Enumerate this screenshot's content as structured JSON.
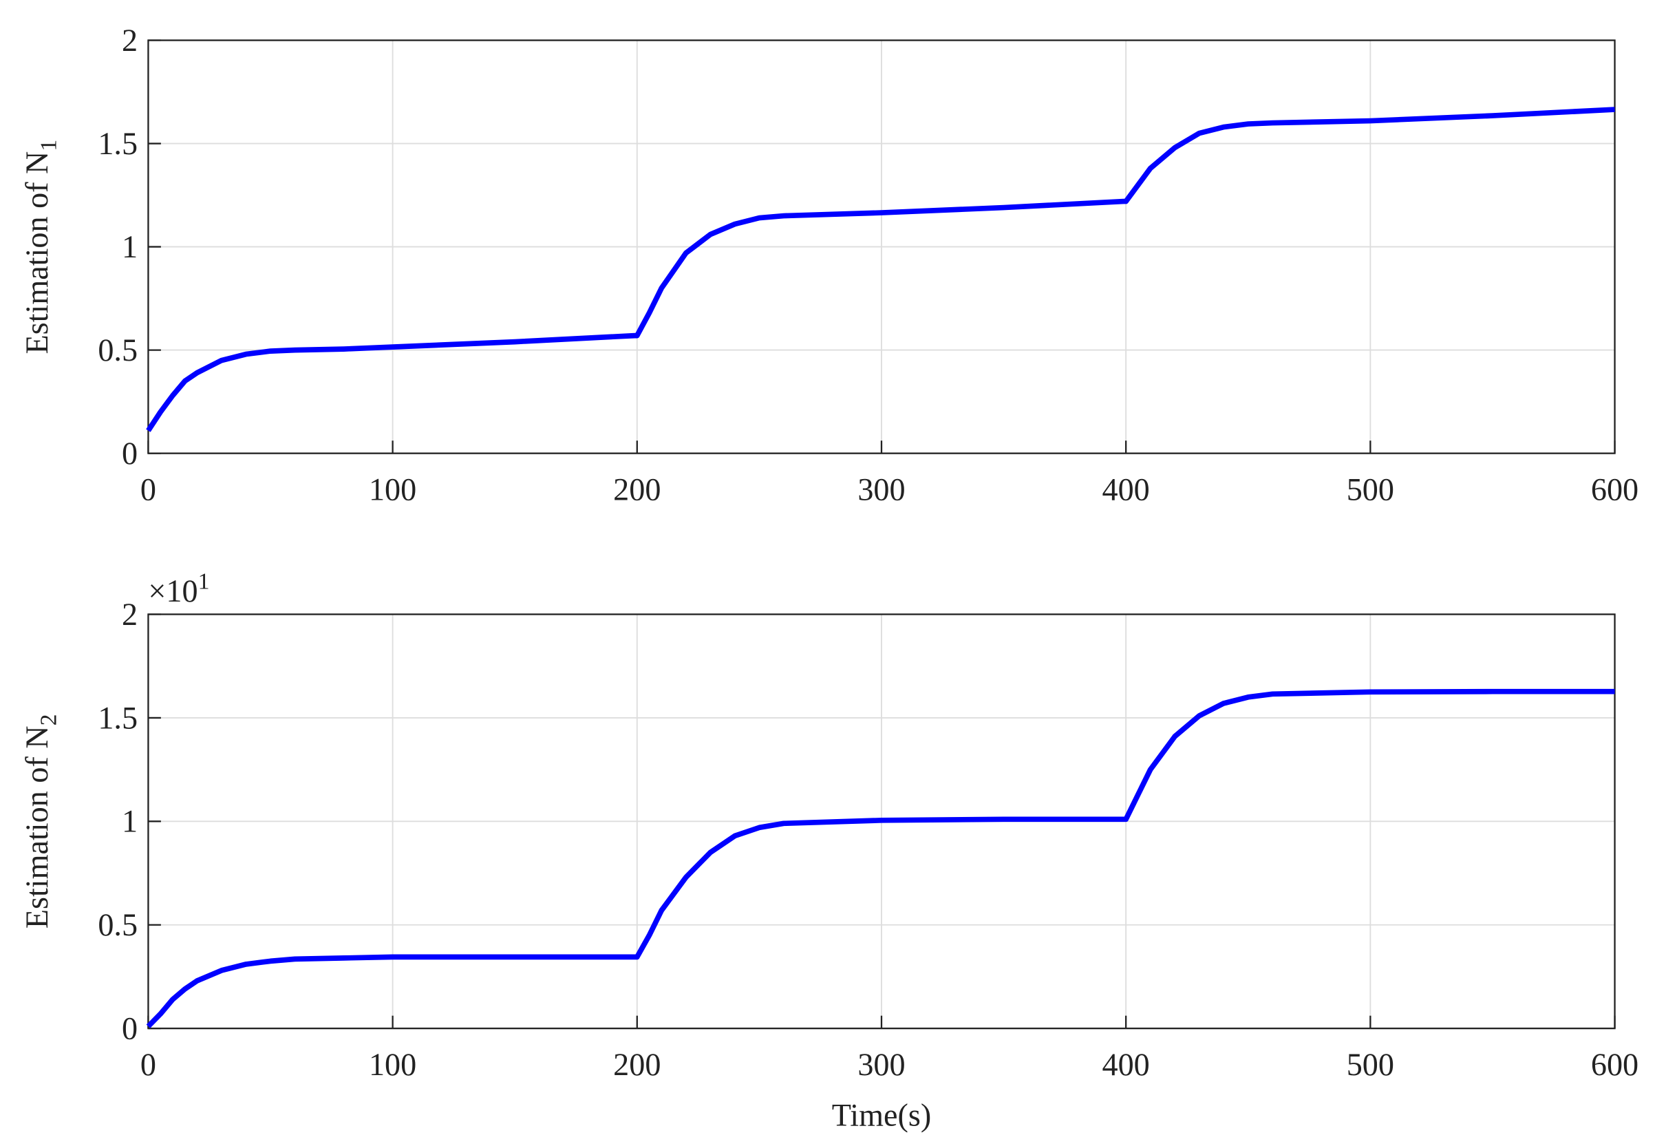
{
  "chart_data": [
    {
      "type": "line",
      "y_label": "Estimation of N",
      "y_label_subscript": "1",
      "x": [
        0,
        5,
        10,
        15,
        20,
        30,
        40,
        50,
        60,
        80,
        100,
        150,
        199,
        200,
        205,
        210,
        220,
        230,
        240,
        250,
        260,
        300,
        350,
        399,
        400,
        405,
        410,
        420,
        430,
        440,
        450,
        460,
        500,
        550,
        600
      ],
      "series": [
        {
          "color": "#0000ff",
          "values": [
            0.11,
            0.2,
            0.28,
            0.35,
            0.39,
            0.45,
            0.48,
            0.495,
            0.5,
            0.505,
            0.515,
            0.54,
            0.57,
            0.57,
            0.68,
            0.8,
            0.97,
            1.06,
            1.11,
            1.14,
            1.15,
            1.165,
            1.19,
            1.22,
            1.22,
            1.3,
            1.38,
            1.48,
            1.55,
            1.58,
            1.595,
            1.6,
            1.61,
            1.635,
            1.665
          ]
        }
      ],
      "xlim": [
        0,
        600
      ],
      "xticks": [
        0,
        100,
        200,
        300,
        400,
        500,
        600
      ],
      "ylim": [
        0,
        2
      ],
      "yticks": [
        0,
        0.5,
        1,
        1.5,
        2
      ],
      "grid": true
    },
    {
      "type": "line",
      "y_label": "Estimation of N",
      "y_label_subscript": "2",
      "x_label": "Time(s)",
      "y_multiplier": "×10",
      "y_multiplier_exponent": "1",
      "x": [
        0,
        5,
        10,
        15,
        20,
        30,
        40,
        50,
        60,
        80,
        100,
        150,
        199,
        200,
        205,
        210,
        220,
        230,
        240,
        250,
        260,
        300,
        350,
        399,
        400,
        405,
        410,
        420,
        430,
        440,
        450,
        460,
        500,
        550,
        600
      ],
      "series": [
        {
          "color": "#0000ff",
          "values": [
            0.01,
            0.07,
            0.14,
            0.19,
            0.23,
            0.28,
            0.31,
            0.325,
            0.335,
            0.34,
            0.345,
            0.345,
            0.345,
            0.345,
            0.45,
            0.57,
            0.73,
            0.85,
            0.93,
            0.97,
            0.99,
            1.005,
            1.01,
            1.01,
            1.01,
            1.13,
            1.25,
            1.41,
            1.51,
            1.57,
            1.6,
            1.615,
            1.625,
            1.627,
            1.627
          ]
        }
      ],
      "xlim": [
        0,
        600
      ],
      "xticks": [
        0,
        100,
        200,
        300,
        400,
        500,
        600
      ],
      "ylim": [
        0,
        2
      ],
      "yticks": [
        0,
        0.5,
        1,
        1.5,
        2
      ],
      "grid": true
    }
  ]
}
